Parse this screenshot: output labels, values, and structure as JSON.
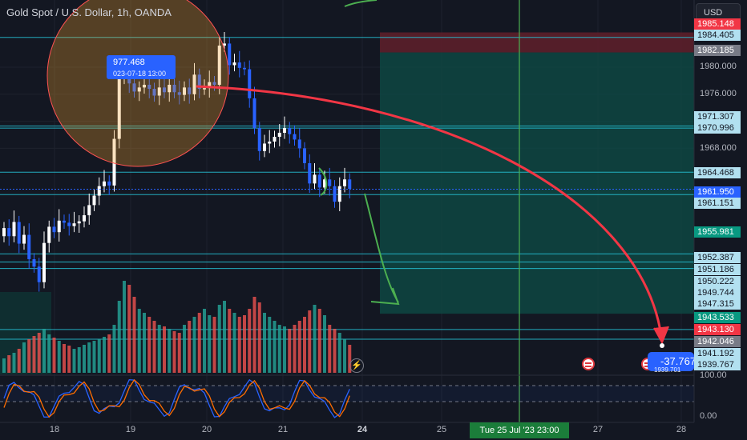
{
  "header": {
    "title": "Gold Spot / U.S. Dollar, 1h, OANDA",
    "currency_button": "USD"
  },
  "price_axis": {
    "ticks": [
      "1980.000",
      "1976.000",
      "1972.000",
      "1968.000"
    ],
    "labels": [
      {
        "text": "1985.148",
        "bg": "#f23645",
        "fg": "#ffffff"
      },
      {
        "text": "1984.405",
        "bg": "#b2e0f0",
        "fg": "#131722"
      },
      {
        "text": "1982.185",
        "bg": "#787b86",
        "fg": "#ffffff"
      },
      {
        "text": "1971.307",
        "bg": "#b2e0f0",
        "fg": "#131722"
      },
      {
        "text": "1970.996",
        "bg": "#b2e0f0",
        "fg": "#131722"
      },
      {
        "text": "1964.468",
        "bg": "#b2e0f0",
        "fg": "#131722"
      },
      {
        "text": "1961.950",
        "bg": "#2962ff",
        "fg": "#ffffff"
      },
      {
        "text": "1961.151",
        "bg": "#b2e0f0",
        "fg": "#131722"
      },
      {
        "text": "1955.981",
        "bg": "#089981",
        "fg": "#ffffff"
      },
      {
        "text": "1952.387",
        "bg": "#b2e0f0",
        "fg": "#131722"
      },
      {
        "text": "1951.186",
        "bg": "#b2e0f0",
        "fg": "#131722"
      },
      {
        "text": "1950.222",
        "bg": "#b2e0f0",
        "fg": "#131722"
      },
      {
        "text": "1949.744",
        "bg": "#b2e0f0",
        "fg": "#131722"
      },
      {
        "text": "1947.315",
        "bg": "#b2e0f0",
        "fg": "#131722"
      },
      {
        "text": "1943.533",
        "bg": "#089981",
        "fg": "#ffffff"
      },
      {
        "text": "1943.130",
        "bg": "#f23645",
        "fg": "#ffffff"
      },
      {
        "text": "1942.046",
        "bg": "#787b86",
        "fg": "#ffffff"
      },
      {
        "text": "1941.192",
        "bg": "#b2e0f0",
        "fg": "#131722"
      },
      {
        "text": "1939.767",
        "bg": "#b2e0f0",
        "fg": "#131722"
      }
    ]
  },
  "oscillator_axis": {
    "ticks": [
      "100.00",
      "0.00"
    ]
  },
  "time_axis": {
    "ticks": [
      "18",
      "19",
      "20",
      "21",
      "24",
      "25",
      "27",
      "28"
    ],
    "cursor_label": "Tue 25 Jul '23  23:00"
  },
  "tooltip": {
    "price": "977.468",
    "date": "023-07-18 13:00"
  },
  "bubble": {
    "value": "-37.767",
    "sub": "1939.701"
  },
  "colors": {
    "background": "#131722",
    "bull": "#ffffff",
    "bear": "#2962ff",
    "level_line": "#26c6da",
    "target_zone": "#0e4a45",
    "stop_zone": "#5c1f2a",
    "projection_arrow": "#f23645",
    "trend_arrow": "#4caf50",
    "cursor_line": "#4caf50",
    "volume_up": "#26a69a",
    "volume_down": "#ef5350",
    "stoch_k": "#2962ff",
    "stoch_d": "#ff6d00"
  },
  "icons": {
    "event_flag": "us-flag-icon",
    "event_indicator": "lightning-icon"
  },
  "chart_data": {
    "type": "candlestick",
    "ohlc_closes": [
      1956.2,
      1955.0,
      1957.1,
      1953.9,
      1955.2,
      1951.6,
      1950.5,
      1948.2,
      1954.0,
      1956.4,
      1955.6,
      1957.3,
      1957.0,
      1956.5,
      1956.9,
      1957.2,
      1958.1,
      1959.6,
      1961.0,
      1962.4,
      1963.1,
      1962.5,
      1969.4,
      1978.4,
      1979.5,
      1977.6,
      1976.4,
      1977.0,
      1977.4,
      1976.8,
      1975.8,
      1977.0,
      1976.3,
      1977.4,
      1976.3,
      1975.9,
      1977.0,
      1976.0,
      1978.9,
      1976.8,
      1976.9,
      1977.8,
      1977.4,
      1983.2,
      1983.5,
      1980.3,
      1980.7,
      1979.9,
      1979.7,
      1975.4,
      1971.0,
      1967.6,
      1968.7,
      1969.0,
      1969.7,
      1970.3,
      1971.0,
      1970.1,
      1969.3,
      1968.0,
      1965.8,
      1962.8,
      1964.1,
      1962.2,
      1963.4,
      1962.4,
      1960.1,
      1962.4,
      1963.4,
      1962.0
    ],
    "volume": [
      18,
      22,
      25,
      30,
      38,
      42,
      46,
      50,
      55,
      48,
      44,
      40,
      36,
      34,
      30,
      32,
      35,
      38,
      40,
      42,
      45,
      48,
      60,
      90,
      115,
      110,
      95,
      80,
      75,
      70,
      65,
      60,
      58,
      55,
      52,
      50,
      60,
      65,
      70,
      75,
      80,
      72,
      70,
      85,
      90,
      80,
      75,
      70,
      72,
      80,
      95,
      88,
      75,
      70,
      65,
      60,
      58,
      55,
      60,
      65,
      70,
      78,
      85,
      80,
      72,
      60,
      55,
      50,
      42,
      35
    ],
    "oscillator_range": [
      0,
      100
    ]
  }
}
